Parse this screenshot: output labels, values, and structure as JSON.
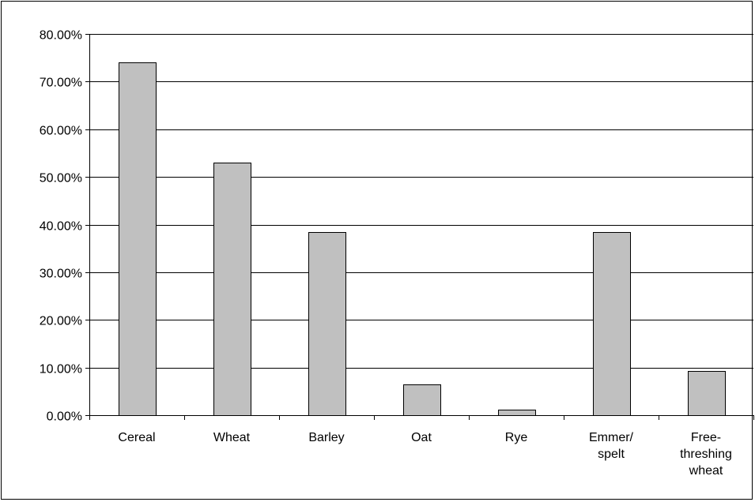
{
  "chart_data": {
    "type": "bar",
    "title": "",
    "xlabel": "",
    "ylabel": "",
    "categories": [
      [
        "Cereal"
      ],
      [
        "Wheat"
      ],
      [
        "Barley"
      ],
      [
        "Oat"
      ],
      [
        "Rye"
      ],
      [
        "Emmer/",
        "spelt"
      ],
      [
        "Free-",
        "threshing",
        "wheat"
      ]
    ],
    "values": [
      74.0,
      53.0,
      38.5,
      6.5,
      1.1,
      38.5,
      9.2
    ],
    "ylim": [
      0,
      80
    ],
    "yticks": [
      0,
      10,
      20,
      30,
      40,
      50,
      60,
      70,
      80
    ],
    "ytick_labels": [
      "0.00%",
      "10.00%",
      "20.00%",
      "30.00%",
      "40.00%",
      "50.00%",
      "60.00%",
      "70.00%",
      "80.00%"
    ],
    "grid": true,
    "legend": "none",
    "colors": {
      "bar_fill": "#c0c0c0",
      "bar_stroke": "#000000",
      "grid": "#000000"
    }
  }
}
